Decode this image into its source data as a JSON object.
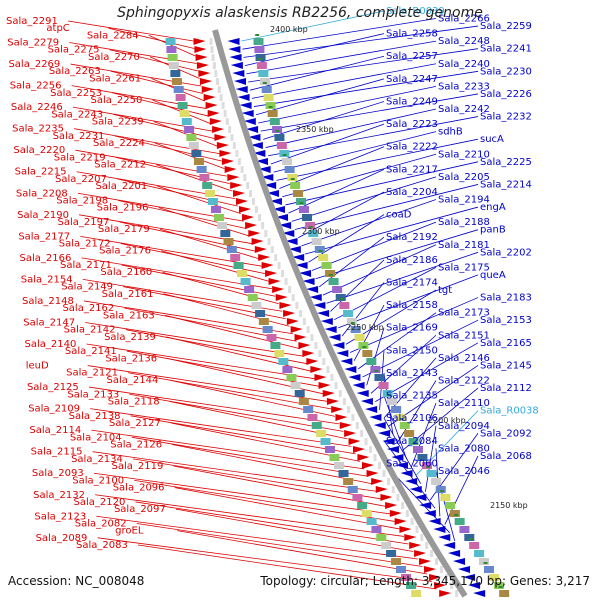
{
  "title": "Sphingopyxis alaskensis RB2256, complete genome",
  "footer": {
    "accession": "Accession: NC_008048",
    "summary": "Topology: circular; Length: 3,345,170 bp; Genes: 3,217"
  },
  "scale_ticks": [
    "2400 kbp",
    "2350 kbp",
    "2300 kbp",
    "2250 kbp",
    "2200 kbp",
    "2150 kbp"
  ],
  "colors": {
    "left_strand": "#dd0000",
    "right_strand": "#0000cc",
    "rna": "#33aadd",
    "backbone": "#999999",
    "tick": "#2e8b2e"
  },
  "left_labels": [
    "Sala_2291",
    "atpC",
    "Sala_2284",
    "Sala_2279",
    "Sala_2275",
    "Sala_2270",
    "Sala_2269",
    "Sala_2263",
    "Sala_2261",
    "Sala_2256",
    "Sala_2253",
    "Sala_2250",
    "Sala_2246",
    "Sala_2243",
    "Sala_2239",
    "Sala_2235",
    "Sala_2231",
    "Sala_2224",
    "Sala_2220",
    "Sala_2219",
    "Sala_2212",
    "Sala_2215",
    "Sala_2207",
    "Sala_2201",
    "Sala_2208",
    "Sala_2198",
    "Sala_2196",
    "Sala_2190",
    "Sala_2197",
    "Sala_2179",
    "Sala_2177",
    "Sala_2172",
    "Sala_2176",
    "Sala_2166",
    "Sala_2171",
    "Sala_2160",
    "Sala_2154",
    "Sala_2149",
    "Sala_2161",
    "Sala_2148",
    "Sala_2162",
    "Sala_2163",
    "Sala_2147",
    "Sala_2142",
    "Sala_2139",
    "Sala_2140",
    "Sala_2141",
    "Sala_2136",
    "leuD",
    "Sala_2121",
    "Sala_2144",
    "Sala_2125",
    "Sala_2133",
    "Sala_2118",
    "Sala_2109",
    "Sala_2138",
    "Sala_2127",
    "Sala_2114",
    "Sala_2104",
    "Sala_2126",
    "Sala_2115",
    "Sala_2134",
    "Sala_2119",
    "Sala_2093",
    "Sala_2100",
    "Sala_2096",
    "Sala_2132",
    "Sala_2120",
    "Sala_2097",
    "Sala_2123",
    "Sala_2082",
    "groEL",
    "Sala_2089",
    "Sala_2083"
  ],
  "right_labels": [
    "Sala_R0039",
    "Sala_2266",
    "Sala_2259",
    "Sala_2258",
    "Sala_2248",
    "Sala_2241",
    "Sala_2257",
    "Sala_2240",
    "Sala_2230",
    "Sala_2247",
    "Sala_2233",
    "Sala_2226",
    "Sala_2249",
    "Sala_2242",
    "Sala_2232",
    "Sala_2223",
    "sdhB",
    "sucA",
    "Sala_2222",
    "Sala_2210",
    "Sala_2225",
    "Sala_2217",
    "Sala_2205",
    "Sala_2214",
    "Sala_2204",
    "Sala_2194",
    "engA",
    "coaD",
    "Sala_2188",
    "panB",
    "Sala_2192",
    "Sala_2181",
    "Sala_2202",
    "Sala_2186",
    "Sala_2175",
    "queA",
    "Sala_2174",
    "tgt",
    "Sala_2183",
    "Sala_2158",
    "Sala_2173",
    "Sala_2153",
    "Sala_2169",
    "Sala_2151",
    "Sala_2165",
    "Sala_2150",
    "Sala_2146",
    "Sala_2145",
    "Sala_2143",
    "Sala_2122",
    "Sala_2112",
    "Sala_2135",
    "Sala_2110",
    "Sala_R0038",
    "Sala_2106",
    "Sala_2094",
    "Sala_2092",
    "Sala_2084",
    "Sala_2080",
    "Sala_2068",
    "Sala_2060",
    "Sala_2046"
  ]
}
